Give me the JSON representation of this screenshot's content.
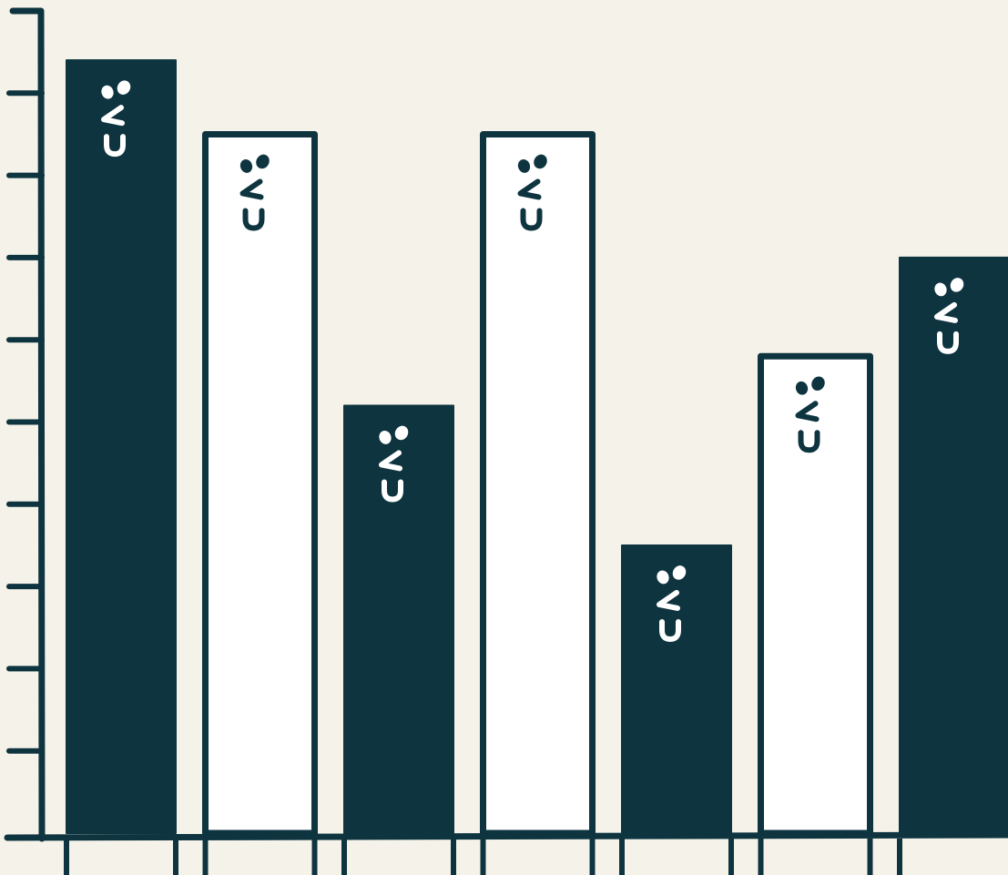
{
  "chart_data": {
    "type": "bar",
    "categories": [
      "",
      "",
      "",
      "",
      "",
      "",
      ""
    ],
    "values": [
      9.4,
      8.5,
      5.2,
      8.5,
      3.5,
      5.8,
      7.0
    ],
    "bar_styles": [
      "dark",
      "light",
      "dark",
      "light",
      "dark",
      "light",
      "dark"
    ],
    "ylim": [
      0,
      10
    ],
    "y_ticks": [
      1,
      2,
      3,
      4,
      5,
      6,
      7,
      8,
      9,
      10
    ],
    "title": "",
    "xlabel": "",
    "ylabel": "",
    "grid": false,
    "legend": "none"
  },
  "colors": {
    "background": "#f5f3e9",
    "ink": "#0e3440",
    "light_fill": "#ffffff",
    "dark_fill": "#0e3440"
  },
  "icons": {
    "bar_glyph": "smiley-face-icon"
  }
}
